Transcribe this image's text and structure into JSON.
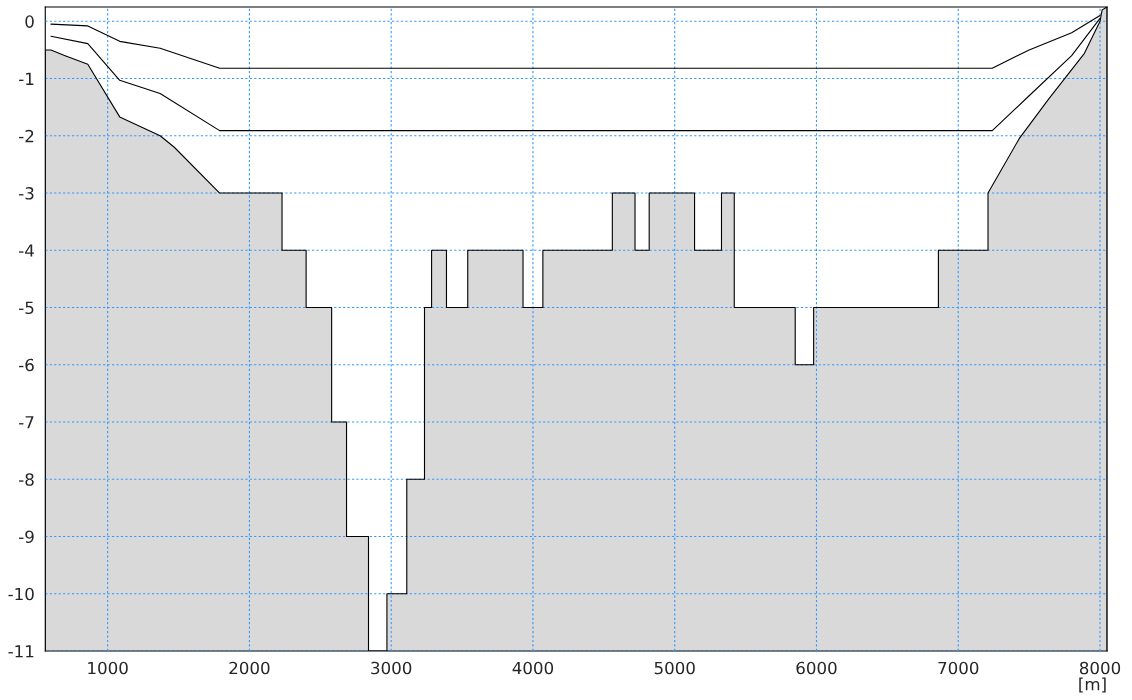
{
  "chart_data": {
    "type": "area",
    "xlabel": "[m]",
    "xlim": [
      560,
      8050
    ],
    "ylim": [
      -11,
      0.25
    ],
    "xticks": [
      1000,
      2000,
      3000,
      4000,
      5000,
      6000,
      7000,
      8000
    ],
    "yticks": [
      0,
      -1,
      -2,
      -3,
      -4,
      -5,
      -6,
      -7,
      -8,
      -9,
      -10,
      -11
    ],
    "grid": true,
    "series": [
      {
        "color": "#d9d9d9",
        "x": [
          560,
          560,
          600,
          700,
          860,
          1085,
          1370,
          1470,
          1790,
          1790,
          2230,
          2230,
          2400,
          2400,
          2580,
          2580,
          2685,
          2685,
          2840,
          2840,
          2970,
          2970,
          3110,
          3110,
          3235,
          3235,
          3285,
          3285,
          3390,
          3390,
          3540,
          3540,
          3930,
          3930,
          4070,
          4070,
          4560,
          4560,
          4720,
          4720,
          4820,
          4820,
          5140,
          5140,
          5330,
          5330,
          5420,
          5420,
          5850,
          5850,
          5980,
          5980,
          6860,
          6860,
          7210,
          7210,
          7430,
          7640,
          7890,
          8000,
          8015,
          8050,
          8050
        ],
        "values": [
          -11,
          -0.5,
          -0.5,
          -0.6,
          -0.75,
          -1.67,
          -2.0,
          -2.2,
          -3,
          -3,
          -3,
          -4,
          -4,
          -5,
          -5,
          -7,
          -7,
          -9,
          -9,
          -11,
          -11,
          -10,
          -10,
          -8,
          -8,
          -5,
          -5,
          -4,
          -4,
          -5,
          -5,
          -4,
          -4,
          -5,
          -5,
          -4,
          -4,
          -3,
          -3,
          -4,
          -4,
          -3,
          -3,
          -4,
          -4,
          -3,
          -3,
          -5,
          -5,
          -6,
          -6,
          -5,
          -5,
          -4,
          -4,
          -3,
          -2.05,
          -1.35,
          -0.56,
          0,
          0.2,
          0.25,
          -11
        ]
      },
      {
        "type": "line",
        "color": "#000000",
        "x": [
          600,
          860,
          1085,
          1370,
          1790,
          7240,
          7500,
          7800,
          8000
        ],
        "values": [
          -0.26,
          -0.39,
          -1.03,
          -1.26,
          -1.91,
          -1.91,
          -1.3,
          -0.6,
          0.05
        ]
      },
      {
        "type": "line",
        "color": "#000000",
        "x": [
          600,
          860,
          1085,
          1370,
          1790,
          7240,
          7500,
          7800,
          8000
        ],
        "values": [
          -0.05,
          -0.08,
          -0.35,
          -0.47,
          -0.82,
          -0.82,
          -0.5,
          -0.2,
          0.1
        ]
      }
    ]
  }
}
